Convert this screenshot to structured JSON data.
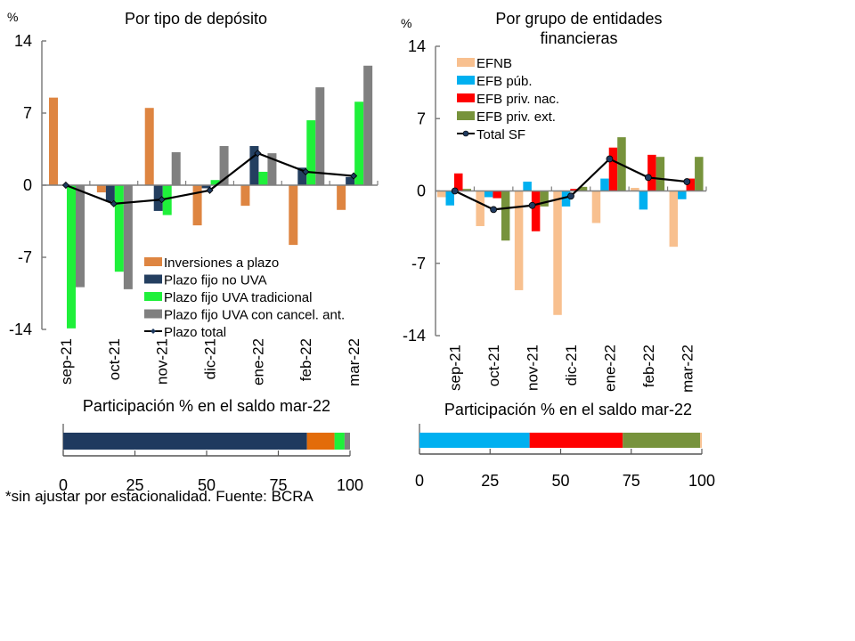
{
  "chart_data": [
    {
      "id": "left",
      "type": "bar",
      "title": "Por tipo de depósito",
      "ylabel": "%",
      "ylim": [
        -14,
        14
      ],
      "yticks": [
        14,
        7,
        0,
        -7,
        -14
      ],
      "ytick_labels": [
        "14",
        "7",
        "0",
        "-7",
        "-14"
      ],
      "categories": [
        "sep-21",
        "oct-21",
        "nov-21",
        "dic-21",
        "ene-22",
        "feb-22",
        "mar-22"
      ],
      "series": [
        {
          "name": "Inversiones a plazo",
          "kind": "bar",
          "color": "#DE8541",
          "values": [
            8.5,
            -0.7,
            7.5,
            -3.9,
            -2.0,
            -5.8,
            -2.4
          ]
        },
        {
          "name": "Plazo fijo no UVA",
          "kind": "bar",
          "color": "#243F60",
          "values": [
            0.0,
            -1.6,
            -2.5,
            -0.3,
            3.8,
            1.7,
            0.8
          ]
        },
        {
          "name": "Plazo fijo UVA tradicional",
          "kind": "bar",
          "color": "#1FF03A",
          "values": [
            -13.9,
            -8.4,
            -2.9,
            0.5,
            1.3,
            6.3,
            8.1
          ]
        },
        {
          "name": "Plazo fijo UVA con cancel. ant.",
          "kind": "bar",
          "color": "#808080",
          "values": [
            -9.9,
            -10.1,
            3.2,
            3.8,
            3.1,
            9.5,
            11.6
          ]
        },
        {
          "name": "Plazo total",
          "kind": "line",
          "color": "#000000",
          "marker_color": "#1F3A5F",
          "values": [
            0.0,
            -1.8,
            -1.4,
            -0.5,
            3.1,
            1.3,
            0.9
          ]
        }
      ],
      "legend": "bottom-right",
      "share": {
        "title": "Participación % en el saldo mar-22",
        "xlim": [
          0,
          100
        ],
        "xticks": [
          "0",
          "25",
          "50",
          "75",
          "100"
        ],
        "segments": [
          {
            "name": "Plazo fijo no UVA",
            "color": "#1F3A5F",
            "value": 85.0
          },
          {
            "name": "Inversiones a plazo",
            "color": "#E36C0A",
            "value": 9.6
          },
          {
            "name": "Plazo fijo UVA tradicional",
            "color": "#1FF03A",
            "value": 3.5
          },
          {
            "name": "Plazo fijo UVA con cancel. ant.",
            "color": "#808080",
            "value": 1.9
          }
        ]
      }
    },
    {
      "id": "right",
      "type": "bar",
      "title": "Por grupo de entidades financieras",
      "title_lines": [
        "Por grupo de entidades",
        "financieras"
      ],
      "ylabel": "%",
      "ylim": [
        -14,
        14
      ],
      "yticks": [
        14,
        7,
        0,
        -7,
        -14
      ],
      "ytick_labels": [
        "14",
        "7",
        "0",
        "-7",
        "-14"
      ],
      "categories": [
        "sep-21",
        "oct-21",
        "nov-21",
        "dic-21",
        "ene-22",
        "feb-22",
        "mar-22"
      ],
      "series": [
        {
          "name": "EFNB",
          "kind": "bar",
          "color": "#F8C08F",
          "values": [
            -0.6,
            -3.4,
            -9.6,
            -12.0,
            -3.1,
            0.3,
            -5.4
          ]
        },
        {
          "name": "EFB púb.",
          "kind": "bar",
          "color": "#00B0F0",
          "values": [
            -1.4,
            -0.6,
            0.9,
            -1.5,
            1.2,
            -1.8,
            -0.8
          ]
        },
        {
          "name": "EFB priv. nac.",
          "kind": "bar",
          "color": "#FF0000",
          "values": [
            1.7,
            -0.7,
            -3.9,
            0.2,
            4.2,
            3.5,
            1.2
          ]
        },
        {
          "name": "EFB priv. ext.",
          "kind": "bar",
          "color": "#77933C",
          "values": [
            0.2,
            -4.8,
            -1.5,
            0.4,
            5.2,
            3.3,
            3.3
          ]
        },
        {
          "name": "Total SF",
          "kind": "line",
          "color": "#000000",
          "marker_color": "#1F3A5F",
          "values": [
            0.0,
            -1.8,
            -1.4,
            -0.5,
            3.1,
            1.3,
            0.9
          ]
        }
      ],
      "legend": "top-left",
      "share": {
        "title": "Participación % en el saldo mar-22",
        "xlim": [
          0,
          100
        ],
        "xticks": [
          "0",
          "25",
          "50",
          "75",
          "100"
        ],
        "segments": [
          {
            "name": "EFB púb.",
            "color": "#00B0F0",
            "value": 39.0
          },
          {
            "name": "EFB priv. nac.",
            "color": "#FF0000",
            "value": 33.0
          },
          {
            "name": "EFB priv. ext.",
            "color": "#77933C",
            "value": 27.4
          },
          {
            "name": "EFNB",
            "color": "#F8C08F",
            "value": 0.6
          }
        ]
      }
    }
  ],
  "footnote": "*sin ajustar por estacionalidad. Fuente: BCRA"
}
